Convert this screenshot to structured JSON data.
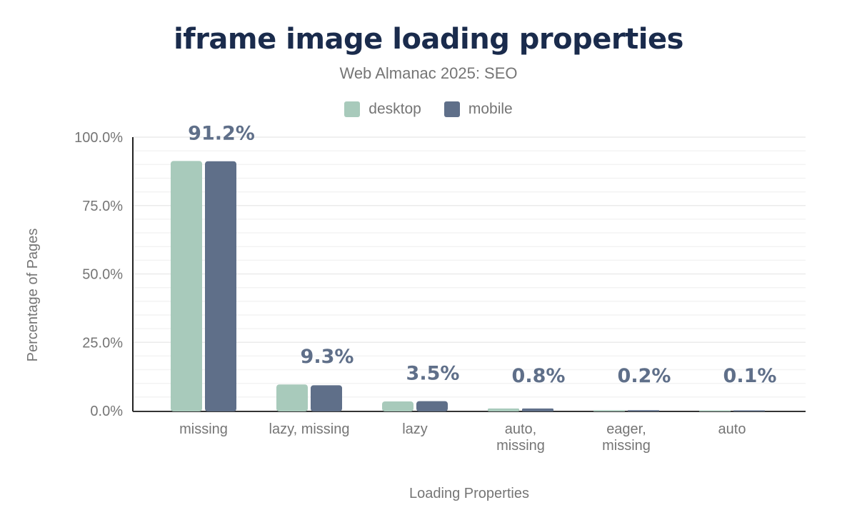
{
  "chart_data": {
    "type": "bar",
    "title": "iframe image loading properties",
    "subtitle": "Web Almanac 2025: SEO",
    "xlabel": "Loading Properties",
    "ylabel": "Percentage of Pages",
    "ylim": [
      0,
      100
    ],
    "yticks": [
      "0.0%",
      "25.0%",
      "50.0%",
      "75.0%",
      "100.0%"
    ],
    "grid": true,
    "legend_position": "top",
    "categories": [
      [
        "missing"
      ],
      [
        "lazy, missing"
      ],
      [
        "lazy"
      ],
      [
        "auto,",
        "missing"
      ],
      [
        "eager,",
        "missing"
      ],
      [
        "auto"
      ]
    ],
    "series": [
      {
        "name": "desktop",
        "color": "#a8cabb",
        "values": [
          91.3,
          9.6,
          3.4,
          0.8,
          0.2,
          0.1
        ]
      },
      {
        "name": "mobile",
        "color": "#5f6f89",
        "values": [
          91.2,
          9.3,
          3.5,
          0.8,
          0.2,
          0.1
        ]
      }
    ],
    "data_labels": [
      "91.2%",
      "9.3%",
      "3.5%",
      "0.8%",
      "0.2%",
      "0.1%"
    ]
  }
}
